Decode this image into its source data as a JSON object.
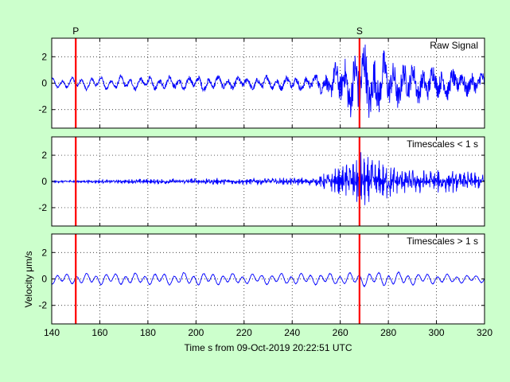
{
  "figure": {
    "background": "#ccffcc",
    "panel_background": "#ffffff",
    "trace_color": "#0000ff",
    "marker_color": "#ff0000"
  },
  "chart_data": [
    {
      "type": "line",
      "title": "Raw Signal",
      "x_range": [
        140,
        320
      ],
      "y_range": [
        -3.4,
        3.4
      ],
      "yticks": [
        -2,
        0,
        2
      ],
      "grid": true,
      "phase_markers": [
        {
          "label": "P",
          "x": 150
        },
        {
          "label": "S",
          "x": 268
        }
      ],
      "series": [
        {
          "name": "",
          "description_free": true,
          "envelope_points": [
            [
              140,
              0.35
            ],
            [
              150,
              0.4
            ],
            [
              160,
              0.5
            ],
            [
              170,
              0.45
            ],
            [
              180,
              0.4
            ],
            [
              190,
              0.45
            ],
            [
              200,
              0.5
            ],
            [
              210,
              0.45
            ],
            [
              220,
              0.4
            ],
            [
              230,
              0.45
            ],
            [
              240,
              0.4
            ],
            [
              250,
              0.5
            ],
            [
              258,
              0.9
            ],
            [
              262,
              1.3
            ],
            [
              266,
              1.6
            ],
            [
              268,
              2.2
            ],
            [
              270,
              1.9
            ],
            [
              275,
              1.6
            ],
            [
              280,
              1.2
            ],
            [
              290,
              1.0
            ],
            [
              300,
              0.8
            ],
            [
              310,
              0.6
            ],
            [
              320,
              0.5
            ]
          ]
        }
      ]
    },
    {
      "type": "line",
      "title": "Timescales < 1 s",
      "x_range": [
        140,
        320
      ],
      "y_range": [
        -3.4,
        3.4
      ],
      "yticks": [
        -2,
        0,
        2
      ],
      "grid": true,
      "phase_markers": [
        {
          "label": "",
          "x": 150
        },
        {
          "label": "",
          "x": 268
        }
      ],
      "series": [
        {
          "name": "",
          "envelope_points": [
            [
              140,
              0.08
            ],
            [
              160,
              0.12
            ],
            [
              180,
              0.18
            ],
            [
              200,
              0.22
            ],
            [
              220,
              0.22
            ],
            [
              240,
              0.25
            ],
            [
              250,
              0.3
            ],
            [
              258,
              0.9
            ],
            [
              262,
              1.3
            ],
            [
              266,
              1.6
            ],
            [
              268,
              2.0
            ],
            [
              270,
              1.9
            ],
            [
              275,
              1.5
            ],
            [
              280,
              1.2
            ],
            [
              290,
              0.9
            ],
            [
              300,
              0.8
            ],
            [
              310,
              0.7
            ],
            [
              320,
              0.5
            ]
          ]
        }
      ]
    },
    {
      "type": "line",
      "title": "Timescales > 1 s",
      "x_range": [
        140,
        320
      ],
      "y_range": [
        -3.4,
        3.4
      ],
      "yticks": [
        -2,
        0,
        2
      ],
      "ylabel": "Velocity μm/s",
      "xlabel": "Time s from 09-Oct-2019 20:22:51 UTC",
      "xticks": [
        140,
        160,
        180,
        200,
        220,
        240,
        260,
        280,
        300,
        320
      ],
      "grid": true,
      "phase_markers": [
        {
          "label": "",
          "x": 150
        },
        {
          "label": "",
          "x": 268
        }
      ],
      "series": [
        {
          "name": "",
          "envelope_points": [
            [
              140,
              0.35
            ],
            [
              160,
              0.4
            ],
            [
              180,
              0.4
            ],
            [
              200,
              0.45
            ],
            [
              220,
              0.35
            ],
            [
              240,
              0.4
            ],
            [
              260,
              0.4
            ],
            [
              270,
              0.5
            ],
            [
              280,
              0.5
            ],
            [
              300,
              0.35
            ],
            [
              320,
              0.25
            ]
          ]
        }
      ]
    }
  ]
}
